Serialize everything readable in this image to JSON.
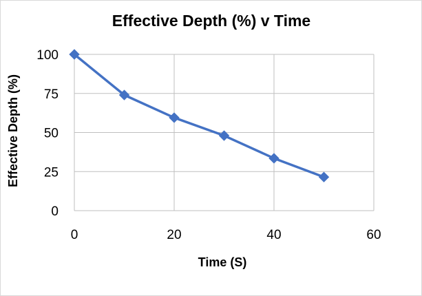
{
  "chart_data": {
    "type": "line",
    "title": "Effective Depth (%) v Time",
    "xlabel": "Time (S)",
    "ylabel": "Effective Depth (%)",
    "xlim": [
      0,
      60
    ],
    "ylim": [
      0,
      100
    ],
    "xticks": [
      0,
      20,
      40,
      60
    ],
    "yticks": [
      0,
      25,
      50,
      75,
      100
    ],
    "grid": true,
    "legend": "none",
    "series": [
      {
        "color": "#4472c4",
        "marker": "diamond",
        "x": [
          0,
          10,
          20,
          30,
          40,
          50
        ],
        "y": [
          100,
          74,
          59.5,
          48,
          33.5,
          21.5
        ]
      }
    ]
  }
}
